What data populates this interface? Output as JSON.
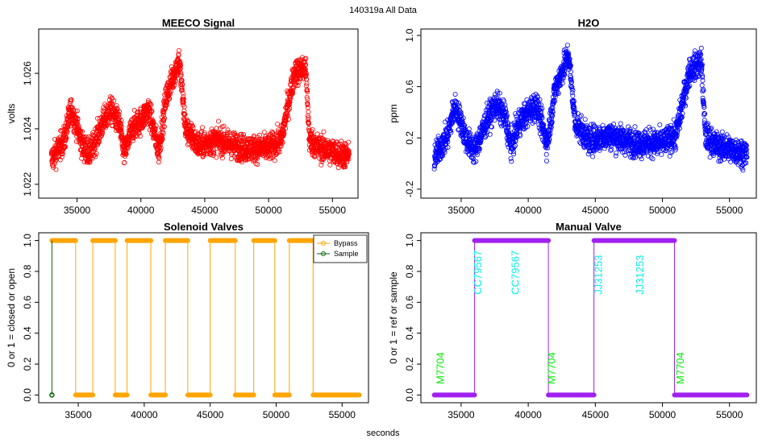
{
  "page": {
    "title": "140319a   All Data",
    "xlabel_common": "seconds"
  },
  "chart_data": [
    {
      "id": "meeco",
      "type": "scatter",
      "title": "MEECO Signal",
      "ylabel": "volts",
      "xlim": [
        32000,
        57000
      ],
      "ylim": [
        1.0215,
        1.0276
      ],
      "xticks": [
        35000,
        40000,
        45000,
        50000,
        55000
      ],
      "yticks": [
        1.022,
        1.024,
        1.026
      ],
      "ytick_labels": [
        "1.022",
        "1.024",
        "1.026"
      ],
      "color": "#ff0000",
      "series": [
        {
          "name": "MEECO Signal",
          "x_start": 33000,
          "x_end": 56300,
          "noise": 0.00045,
          "trend": [
            [
              33000,
              1.0229
            ],
            [
              34000,
              1.0236
            ],
            [
              34500,
              1.0247
            ],
            [
              35000,
              1.0241
            ],
            [
              35400,
              1.0234
            ],
            [
              36000,
              1.0231
            ],
            [
              37000,
              1.0242
            ],
            [
              37600,
              1.0247
            ],
            [
              38300,
              1.0242
            ],
            [
              38700,
              1.0231
            ],
            [
              39300,
              1.024
            ],
            [
              40000,
              1.0243
            ],
            [
              40600,
              1.0247
            ],
            [
              41400,
              1.0232
            ],
            [
              42000,
              1.0252
            ],
            [
              43000,
              1.0265
            ],
            [
              43500,
              1.024
            ],
            [
              44500,
              1.0234
            ],
            [
              46000,
              1.0236
            ],
            [
              48000,
              1.0233
            ],
            [
              50000,
              1.0233
            ],
            [
              51000,
              1.0236
            ],
            [
              52000,
              1.026
            ],
            [
              52900,
              1.0262
            ],
            [
              53200,
              1.0236
            ],
            [
              54000,
              1.0233
            ],
            [
              56300,
              1.023
            ]
          ]
        }
      ]
    },
    {
      "id": "h2o",
      "type": "scatter",
      "title": "H2O",
      "ylabel": "ppm",
      "xlim": [
        32000,
        57000
      ],
      "ylim": [
        -0.27,
        1.05
      ],
      "xticks": [
        35000,
        40000,
        45000,
        50000,
        55000
      ],
      "yticks": [
        -0.2,
        0.2,
        0.6,
        1.0
      ],
      "ytick_labels": [
        "-0.2",
        "0.2",
        "0.6",
        "1.0"
      ],
      "color": "#0000ff",
      "series": [
        {
          "name": "H2O",
          "x_start": 33000,
          "x_end": 56300,
          "noise": 0.1,
          "trend": [
            [
              33000,
              0.05
            ],
            [
              34000,
              0.22
            ],
            [
              34500,
              0.45
            ],
            [
              35000,
              0.32
            ],
            [
              35400,
              0.18
            ],
            [
              36000,
              0.1
            ],
            [
              37000,
              0.36
            ],
            [
              37600,
              0.46
            ],
            [
              38300,
              0.36
            ],
            [
              38700,
              0.12
            ],
            [
              39300,
              0.32
            ],
            [
              40000,
              0.4
            ],
            [
              40600,
              0.46
            ],
            [
              41400,
              0.15
            ],
            [
              42000,
              0.58
            ],
            [
              43000,
              0.85
            ],
            [
              43500,
              0.32
            ],
            [
              44500,
              0.18
            ],
            [
              46000,
              0.22
            ],
            [
              48000,
              0.16
            ],
            [
              50000,
              0.16
            ],
            [
              51000,
              0.22
            ],
            [
              52000,
              0.72
            ],
            [
              52900,
              0.8
            ],
            [
              53200,
              0.22
            ],
            [
              54000,
              0.14
            ],
            [
              56300,
              0.08
            ]
          ]
        }
      ]
    },
    {
      "id": "solenoid",
      "type": "line",
      "title": "Solenoid Valves",
      "ylabel": "0 or 1 = closed or open",
      "xlim": [
        32000,
        57000
      ],
      "ylim": [
        -0.05,
        1.05
      ],
      "xticks": [
        35000,
        40000,
        45000,
        50000,
        55000
      ],
      "yticks": [
        0.0,
        0.2,
        0.4,
        0.6,
        0.8,
        1.0
      ],
      "ytick_labels": [
        "0.0",
        "0.2",
        "0.4",
        "0.6",
        "0.8",
        "1.0"
      ],
      "legend": {
        "position": "top-right",
        "entries": [
          "Bypass",
          "Sample"
        ]
      },
      "series": [
        {
          "name": "Bypass",
          "color": "#ffa500",
          "segments": [
            {
              "x": [
                33000,
                34800
              ],
              "y": 1
            },
            {
              "x": [
                34800,
                36100
              ],
              "y": 0
            },
            {
              "x": [
                36100,
                37800
              ],
              "y": 1
            },
            {
              "x": [
                37800,
                38700
              ],
              "y": 0
            },
            {
              "x": [
                38700,
                40500
              ],
              "y": 1
            },
            {
              "x": [
                40500,
                41600
              ],
              "y": 0
            },
            {
              "x": [
                41600,
                43300
              ],
              "y": 1
            },
            {
              "x": [
                43300,
                45000
              ],
              "y": 0
            },
            {
              "x": [
                45000,
                46900
              ],
              "y": 1
            },
            {
              "x": [
                46900,
                48300
              ],
              "y": 0
            },
            {
              "x": [
                48300,
                49900
              ],
              "y": 1
            },
            {
              "x": [
                49900,
                51000
              ],
              "y": 0
            },
            {
              "x": [
                51000,
                52800
              ],
              "y": 1
            },
            {
              "x": [
                52800,
                56300
              ],
              "y": 0
            }
          ]
        },
        {
          "name": "Sample",
          "color": "#006400",
          "segments": [
            {
              "x": [
                33000,
                33000
              ],
              "y": 0
            }
          ]
        }
      ]
    },
    {
      "id": "manual",
      "type": "line",
      "title": "Manual Valve",
      "ylabel": "0 or 1 = ref or sample",
      "xlim": [
        32000,
        57000
      ],
      "ylim": [
        -0.05,
        1.05
      ],
      "xticks": [
        35000,
        40000,
        45000,
        50000,
        55000
      ],
      "yticks": [
        0.0,
        0.2,
        0.4,
        0.6,
        0.8,
        1.0
      ],
      "ytick_labels": [
        "0.0",
        "0.2",
        "0.4",
        "0.6",
        "0.8",
        "1.0"
      ],
      "series": [
        {
          "name": "Manual Valve",
          "color": "#a020f0",
          "segments": [
            {
              "x": [
                33000,
                36000
              ],
              "y": 0
            },
            {
              "x": [
                36000,
                41500
              ],
              "y": 1
            },
            {
              "x": [
                41500,
                44900
              ],
              "y": 0
            },
            {
              "x": [
                44900,
                50900
              ],
              "y": 1
            },
            {
              "x": [
                50900,
                56300
              ],
              "y": 0
            }
          ]
        }
      ],
      "annotations": [
        {
          "text": "M7704",
          "x": 33700,
          "y": 0.07,
          "color": "#00ee00"
        },
        {
          "text": "CC79567",
          "x": 36500,
          "y": 0.65,
          "color": "#00eeee"
        },
        {
          "text": "CC79567",
          "x": 39300,
          "y": 0.65,
          "color": "#00eeee"
        },
        {
          "text": "M7704",
          "x": 42000,
          "y": 0.07,
          "color": "#00ee00"
        },
        {
          "text": "JJ31253",
          "x": 45500,
          "y": 0.65,
          "color": "#00eeee"
        },
        {
          "text": "JJ31253",
          "x": 48600,
          "y": 0.65,
          "color": "#00eeee"
        },
        {
          "text": "M7704",
          "x": 51600,
          "y": 0.07,
          "color": "#00ee00"
        }
      ]
    }
  ]
}
